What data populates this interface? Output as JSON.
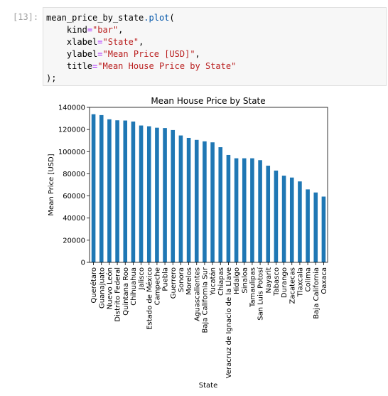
{
  "cell": {
    "prompt": "[13]:",
    "code": {
      "var": "mean_price_by_state",
      "method": ".plot",
      "open": "(",
      "kind_key": "kind",
      "kind_val": "\"bar\"",
      "xlabel_key": "xlabel",
      "xlabel_val": "\"State\"",
      "ylabel_key": "ylabel",
      "ylabel_val": "\"Mean Price [USD]\"",
      "title_key": "title",
      "title_val": "\"Mean House Price by State\"",
      "close": ");"
    }
  },
  "colors": {
    "bar": "#1f77b4",
    "code_bg": "#f7f7f7",
    "prompt": "#a0a0a0",
    "string": "#ba2121"
  },
  "chart_data": {
    "type": "bar",
    "title": "Mean House Price by State",
    "xlabel": "State",
    "ylabel": "Mean Price [USD]",
    "ylim": [
      0,
      140000
    ],
    "yticks": [
      "0",
      "20000",
      "40000",
      "60000",
      "80000",
      "100000",
      "120000",
      "140000"
    ],
    "categories": [
      "Querétaro",
      "Guanajuato",
      "Nuevo León",
      "Distrito Federal",
      "Quintana Roo",
      "Chihuahua",
      "Jalisco",
      "Estado de México",
      "Campeche",
      "Puebla",
      "Guerrero",
      "Sonora",
      "Morelos",
      "Aguascalientes",
      "Baja California Sur",
      "Yucatán",
      "Chiapas",
      "Veracruz de Ignacio de la Llave",
      "Hidalgo",
      "Sinaloa",
      "Tamaulipas",
      "San Luis Potosí",
      "Nayarit",
      "Tabasco",
      "Durango",
      "Zacatecas",
      "Tlaxcala",
      "Colima",
      "Baja California",
      "Oaxaca"
    ],
    "values": [
      133800,
      133000,
      129200,
      128300,
      128100,
      127200,
      123600,
      122900,
      121600,
      121300,
      119500,
      114600,
      112400,
      110600,
      109300,
      108400,
      104000,
      97000,
      94000,
      94000,
      94000,
      92300,
      87300,
      82900,
      78300,
      76600,
      73100,
      65900,
      63100,
      59400
    ]
  }
}
